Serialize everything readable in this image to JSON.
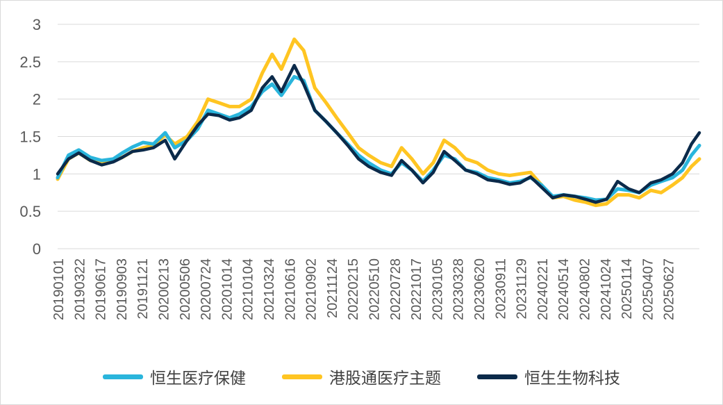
{
  "chart_data": {
    "type": "line",
    "title": "",
    "xlabel": "",
    "ylabel": "",
    "ylim": [
      0,
      3
    ],
    "yticks": [
      "0",
      "0.5",
      "1",
      "1.5",
      "2",
      "2.5",
      "3"
    ],
    "grid": true,
    "legend_position": "bottom",
    "x_tick_labels": [
      "20190101",
      "20190322",
      "20190617",
      "20190903",
      "20191121",
      "20200213",
      "20200506",
      "20200724",
      "20201014",
      "20210104",
      "20210324",
      "20210616",
      "20210902",
      "20211124",
      "20220215",
      "20220510",
      "20220728",
      "20221017",
      "20230105",
      "20230328",
      "20230620",
      "20230911",
      "20231129",
      "20240221",
      "20240514",
      "20240802",
      "20241024",
      "20250114",
      "20250407",
      "20250627"
    ],
    "x": [
      "20190101",
      "20190211",
      "20190322",
      "20190505",
      "20190617",
      "20190731",
      "20190903",
      "20191012",
      "20191121",
      "20191230",
      "20200213",
      "20200320",
      "20200506",
      "20200615",
      "20200724",
      "20200904",
      "20201014",
      "20201120",
      "20210104",
      "20210215",
      "20210324",
      "20210428",
      "20210616",
      "20210722",
      "20210902",
      "20211015",
      "20211124",
      "20220105",
      "20220215",
      "20220325",
      "20220510",
      "20220620",
      "20220728",
      "20220905",
      "20221017",
      "20221125",
      "20230105",
      "20230215",
      "20230328",
      "20230510",
      "20230620",
      "20230731",
      "20230911",
      "20231020",
      "20231129",
      "20240110",
      "20240221",
      "20240402",
      "20240514",
      "20240625",
      "20240802",
      "20240912",
      "20241024",
      "20241205",
      "20250114",
      "20250227",
      "20250407",
      "20250520",
      "20250627",
      "20250731",
      "20250830"
    ],
    "series": [
      {
        "name": "恒生医疗保健",
        "color": "#2ab5dc",
        "values": [
          0.95,
          1.25,
          1.32,
          1.22,
          1.18,
          1.2,
          1.28,
          1.36,
          1.42,
          1.4,
          1.55,
          1.35,
          1.45,
          1.6,
          1.85,
          1.8,
          1.75,
          1.8,
          1.9,
          2.1,
          2.2,
          2.05,
          2.3,
          2.25,
          1.85,
          1.7,
          1.55,
          1.4,
          1.25,
          1.15,
          1.05,
          1.0,
          1.15,
          1.05,
          0.9,
          1.05,
          1.25,
          1.2,
          1.05,
          1.02,
          0.95,
          0.92,
          0.88,
          0.9,
          0.95,
          0.85,
          0.7,
          0.72,
          0.7,
          0.68,
          0.65,
          0.66,
          0.8,
          0.78,
          0.75,
          0.85,
          0.9,
          0.95,
          1.05,
          1.25,
          1.38
        ]
      },
      {
        "name": "港股通医疗主题",
        "color": "#ffc522",
        "values": [
          0.93,
          1.2,
          1.28,
          1.18,
          1.14,
          1.17,
          1.22,
          1.3,
          1.35,
          1.38,
          1.52,
          1.4,
          1.5,
          1.7,
          2.0,
          1.95,
          1.9,
          1.9,
          2.0,
          2.35,
          2.6,
          2.4,
          2.8,
          2.65,
          2.15,
          1.95,
          1.75,
          1.55,
          1.35,
          1.25,
          1.15,
          1.1,
          1.35,
          1.2,
          1.0,
          1.15,
          1.45,
          1.35,
          1.2,
          1.15,
          1.05,
          1.0,
          0.98,
          1.0,
          1.02,
          0.85,
          0.68,
          0.7,
          0.65,
          0.62,
          0.58,
          0.6,
          0.72,
          0.72,
          0.68,
          0.78,
          0.75,
          0.85,
          0.95,
          1.1,
          1.2
        ]
      },
      {
        "name": "恒生生物科技",
        "color": "#0b2a4a",
        "values": [
          1.0,
          1.2,
          1.28,
          1.18,
          1.12,
          1.16,
          1.22,
          1.3,
          1.32,
          1.35,
          1.45,
          1.2,
          1.45,
          1.65,
          1.8,
          1.78,
          1.72,
          1.75,
          1.85,
          2.15,
          2.3,
          2.1,
          2.45,
          2.2,
          1.85,
          1.7,
          1.55,
          1.38,
          1.2,
          1.1,
          1.02,
          0.98,
          1.18,
          1.05,
          0.88,
          1.02,
          1.3,
          1.18,
          1.05,
          1.0,
          0.92,
          0.9,
          0.86,
          0.88,
          0.96,
          0.82,
          0.68,
          0.72,
          0.7,
          0.66,
          0.62,
          0.66,
          0.9,
          0.8,
          0.75,
          0.88,
          0.92,
          1.0,
          1.15,
          1.4,
          1.55
        ]
      }
    ]
  }
}
